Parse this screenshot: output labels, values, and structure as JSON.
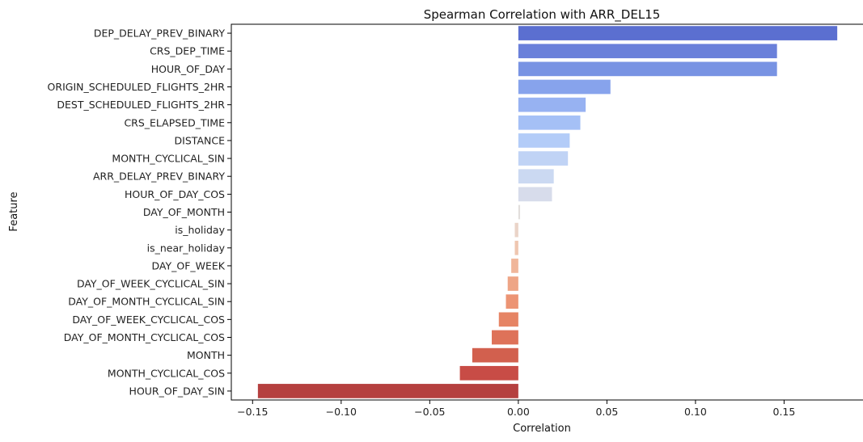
{
  "chart_data": {
    "type": "bar",
    "orientation": "horizontal",
    "title": "Spearman Correlation with ARR_DEL15",
    "xlabel": "Correlation",
    "ylabel": "Feature",
    "xlim": [
      -0.162,
      0.195
    ],
    "xticks": [
      -0.15,
      -0.1,
      -0.05,
      0.0,
      0.05,
      0.1,
      0.15
    ],
    "xtick_labels": [
      "−0.15",
      "−0.10",
      "−0.05",
      "0.00",
      "0.05",
      "0.10",
      "0.15"
    ],
    "grid": false,
    "colormap": "coolwarm",
    "categories": [
      "DEP_DELAY_PREV_BINARY",
      "CRS_DEP_TIME",
      "HOUR_OF_DAY",
      "ORIGIN_SCHEDULED_FLIGHTS_2HR",
      "DEST_SCHEDULED_FLIGHTS_2HR",
      "CRS_ELAPSED_TIME",
      "DISTANCE",
      "MONTH_CYCLICAL_SIN",
      "ARR_DELAY_PREV_BINARY",
      "HOUR_OF_DAY_COS",
      "DAY_OF_MONTH",
      "is_holiday",
      "is_near_holiday",
      "DAY_OF_WEEK",
      "DAY_OF_WEEK_CYCLICAL_SIN",
      "DAY_OF_MONTH_CYCLICAL_SIN",
      "DAY_OF_WEEK_CYCLICAL_COS",
      "DAY_OF_MONTH_CYCLICAL_COS",
      "MONTH",
      "MONTH_CYCLICAL_COS",
      "HOUR_OF_DAY_SIN"
    ],
    "values": [
      0.18,
      0.146,
      0.146,
      0.052,
      0.038,
      0.035,
      0.029,
      0.028,
      0.02,
      0.019,
      0.001,
      -0.002,
      -0.002,
      -0.004,
      -0.006,
      -0.007,
      -0.011,
      -0.015,
      -0.026,
      -0.033,
      -0.147
    ],
    "colors": [
      "#5b6fd0",
      "#6a80da",
      "#7893e3",
      "#87a3ec",
      "#97b2f2",
      "#a5c0f6",
      "#b3ccf8",
      "#c0d3f5",
      "#cbd9f2",
      "#d7dceb",
      "#e2dfdd",
      "#ead4c8",
      "#efc6b0",
      "#f0b69a",
      "#eea586",
      "#ec9474",
      "#e68464",
      "#de7259",
      "#d2604e",
      "#c84c46",
      "#b5403f"
    ]
  }
}
